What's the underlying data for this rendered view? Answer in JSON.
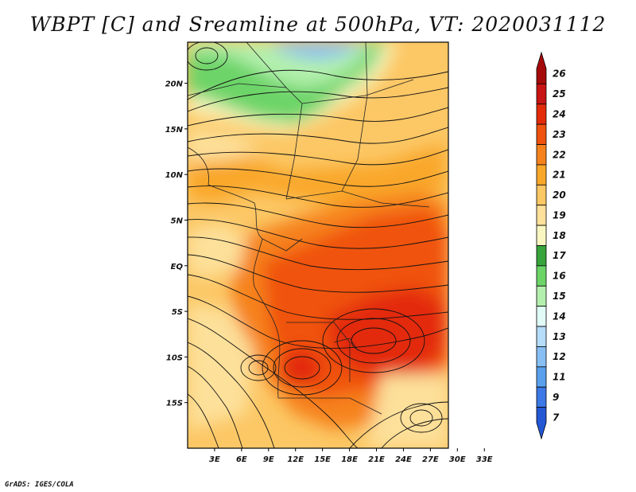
{
  "title": "WBPT [C] and Sreamline at 500hPa, VT: 2020031112",
  "credit": "GrADS: IGES/COLA",
  "lat_labels": [
    {
      "text": "20N",
      "lat": 20
    },
    {
      "text": "15N",
      "lat": 15
    },
    {
      "text": "10N",
      "lat": 10
    },
    {
      "text": "5N",
      "lat": 5
    },
    {
      "text": "EQ",
      "lat": 0
    },
    {
      "text": "5S",
      "lat": -5
    },
    {
      "text": "10S",
      "lat": -10
    },
    {
      "text": "15S",
      "lat": -15
    }
  ],
  "lon_labels": [
    {
      "text": "3E",
      "lon": 3
    },
    {
      "text": "6E",
      "lon": 6
    },
    {
      "text": "9E",
      "lon": 9
    },
    {
      "text": "12E",
      "lon": 12
    },
    {
      "text": "15E",
      "lon": 15
    },
    {
      "text": "18E",
      "lon": 18
    },
    {
      "text": "21E",
      "lon": 21
    },
    {
      "text": "24E",
      "lon": 24
    },
    {
      "text": "27E",
      "lon": 27
    },
    {
      "text": "30E",
      "lon": 30
    },
    {
      "text": "33E",
      "lon": 33
    }
  ],
  "map_extent": {
    "lon_min": 0.0,
    "lon_max": 29.0,
    "lat_min": -20.0,
    "lat_max": 24.5
  },
  "colorbar": [
    {
      "label": "26",
      "color": "#a50a0a"
    },
    {
      "label": "25",
      "color": "#c81414"
    },
    {
      "label": "24",
      "color": "#e32b0a"
    },
    {
      "label": "23",
      "color": "#f0520f"
    },
    {
      "label": "22",
      "color": "#f6821e"
    },
    {
      "label": "21",
      "color": "#f9a72a"
    },
    {
      "label": "20",
      "color": "#fcc765"
    },
    {
      "label": "19",
      "color": "#fde09a"
    },
    {
      "label": "18",
      "color": "#f9f6c2"
    },
    {
      "label": "17",
      "color": "#37a43c"
    },
    {
      "label": "16",
      "color": "#6cd467"
    },
    {
      "label": "15",
      "color": "#b4f0ad"
    },
    {
      "label": "14",
      "color": "#e1fcf6"
    },
    {
      "label": "13",
      "color": "#b5dcf9"
    },
    {
      "label": "12",
      "color": "#87bff4"
    },
    {
      "label": "11",
      "color": "#5aa0ed"
    },
    {
      "label": "9",
      "color": "#3c78e6"
    },
    {
      "label": "7",
      "color": "#2357d4"
    }
  ]
}
